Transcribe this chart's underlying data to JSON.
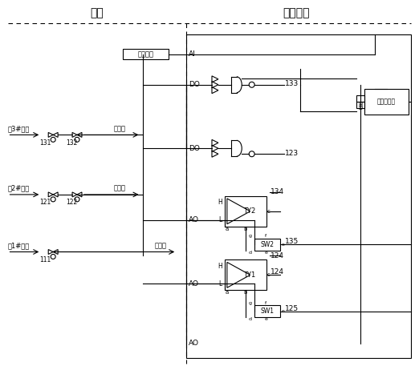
{
  "title_left": "现场",
  "title_right": "控制系统",
  "fig_bg": "#ffffff",
  "wendu_jiance": "温度检测",
  "wendu_kongzhi": "温度控制器",
  "n133": "133",
  "n123": "123",
  "n134": "134",
  "n135": "135",
  "n124": "124",
  "n125": "125",
  "TY2": "TY2",
  "TY1": "TY1",
  "SW2": "SW2",
  "SW1": "SW1",
  "n131": "131",
  "n132": "132",
  "n121": "121",
  "n122": "122",
  "n111": "111",
  "burner3": "卓3#火嘴",
  "fuel3": "燃料气",
  "burner2": "卓2#火嘴",
  "fuel2": "燃料气",
  "burner1": "卓1#火嘴",
  "fuel1": "燃料气",
  "label_AI": "AI",
  "label_DO": "DO",
  "label_AO": "AO",
  "label_D": "D",
  "label_H": "H",
  "label_L": "L",
  "label_a": "a",
  "label_b": "b",
  "label_c": "c",
  "label_d": "d",
  "label_e": "e",
  "label_f": "f",
  "label_g": "g"
}
